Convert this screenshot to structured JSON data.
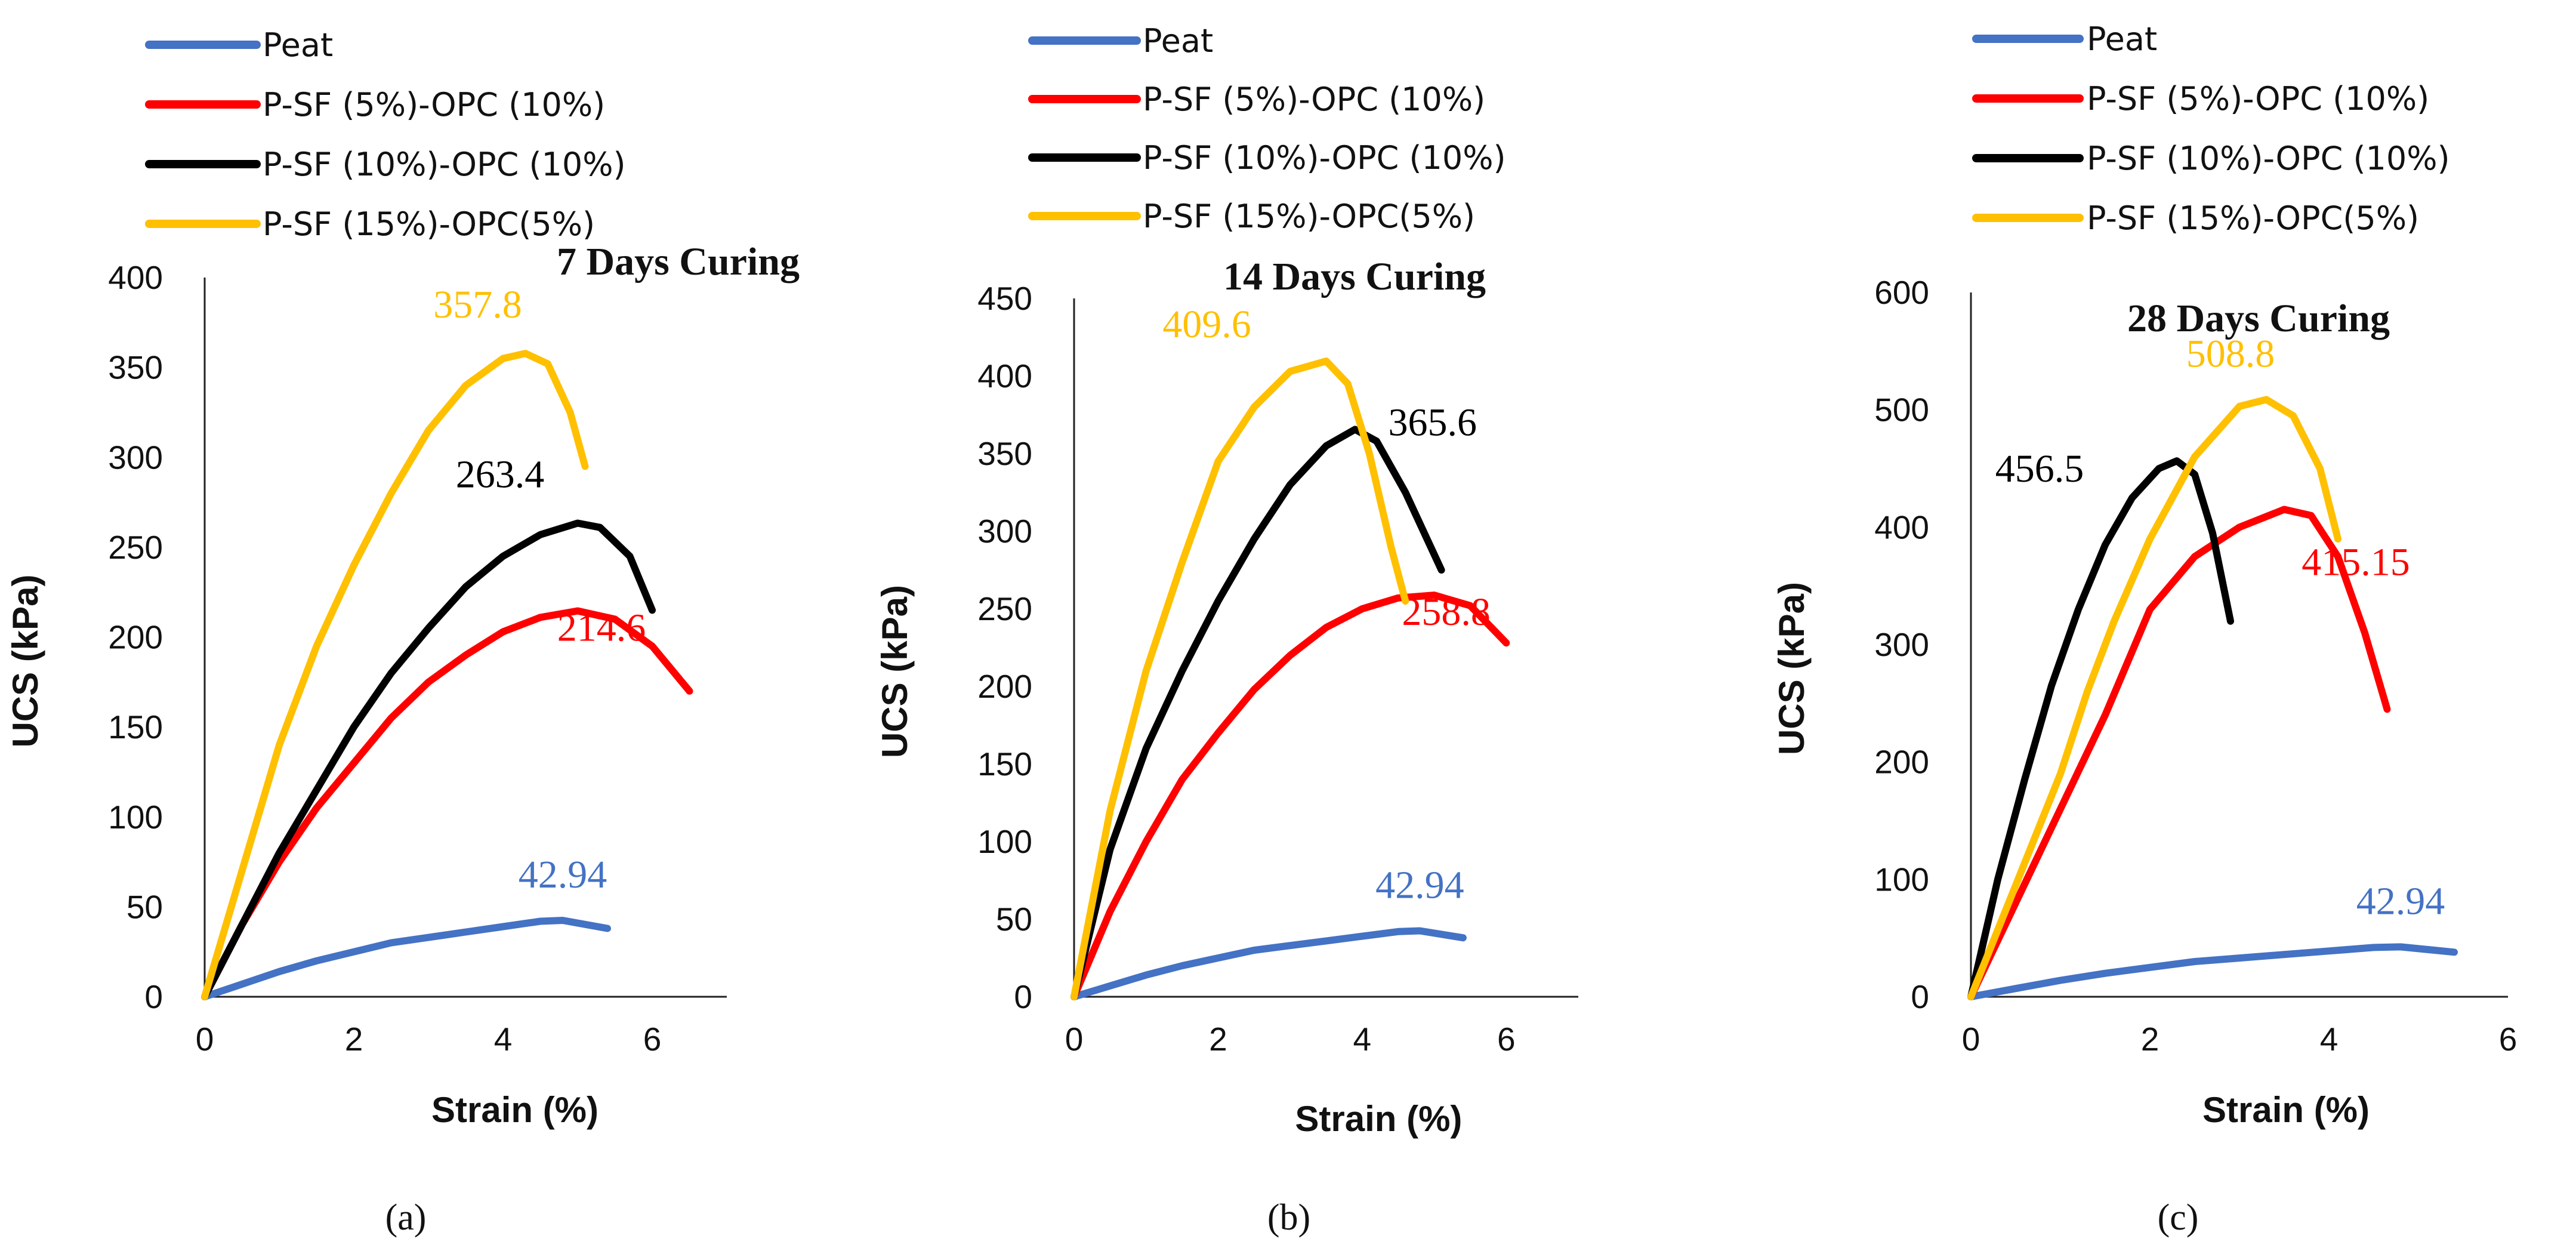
{
  "chart_data": [
    {
      "type": "line",
      "title": "7 Days Curing",
      "xlabel": "Strain (%)",
      "ylabel": "UCS (kPa)",
      "xlim": [
        0,
        7
      ],
      "ylim": [
        0,
        400
      ],
      "xticks": [
        "0",
        "2",
        "4",
        "6"
      ],
      "yticks": [
        "0",
        "50",
        "100",
        "150",
        "200",
        "250",
        "300",
        "350",
        "400"
      ],
      "grid": false,
      "legend_position": "top-left",
      "panel_label": "(a)",
      "series": [
        {
          "name": "Peat",
          "color": "#4472C4",
          "peak_label": "42.94",
          "x": [
            0,
            0.5,
            1,
            1.5,
            2,
            2.5,
            3,
            3.5,
            4,
            4.5,
            4.8,
            5.4
          ],
          "y": [
            0,
            7,
            14,
            20,
            25,
            30,
            33,
            36,
            39,
            42,
            42.5,
            38
          ]
        },
        {
          "name": "P-SF (5%)-OPC (10%)",
          "color": "#FF0000",
          "peak_label": "214.6",
          "x": [
            0,
            0.5,
            1,
            1.5,
            2,
            2.5,
            3,
            3.5,
            4,
            4.5,
            5,
            5.5,
            6,
            6.5
          ],
          "y": [
            0,
            40,
            75,
            105,
            130,
            155,
            175,
            190,
            203,
            211,
            214.6,
            210,
            195,
            170
          ]
        },
        {
          "name": "P-SF (10%)-OPC (10%)",
          "color": "#000000",
          "peak_label": "263.4",
          "x": [
            0,
            0.5,
            1,
            1.5,
            2,
            2.5,
            3,
            3.5,
            4,
            4.5,
            5,
            5.3,
            5.7,
            6
          ],
          "y": [
            0,
            40,
            80,
            115,
            150,
            180,
            205,
            228,
            245,
            257,
            263.4,
            261,
            245,
            215
          ]
        },
        {
          "name": "P-SF (15%)-OPC(5%)",
          "color": "#FFC000",
          "peak_label": "357.8",
          "x": [
            0,
            0.5,
            1,
            1.5,
            2,
            2.5,
            3,
            3.5,
            4,
            4.3,
            4.6,
            4.9,
            5.1
          ],
          "y": [
            0,
            70,
            140,
            195,
            240,
            280,
            315,
            340,
            355,
            357.8,
            352,
            325,
            295
          ]
        }
      ]
    },
    {
      "type": "line",
      "title": "14 Days Curing",
      "xlabel": "Strain (%)",
      "ylabel": "UCS (kPa)",
      "xlim": [
        0,
        7
      ],
      "ylim": [
        0,
        450
      ],
      "xticks": [
        "0",
        "2",
        "4",
        "6"
      ],
      "yticks": [
        "0",
        "50",
        "100",
        "150",
        "200",
        "250",
        "300",
        "350",
        "400",
        "450"
      ],
      "grid": false,
      "legend_position": "top-left",
      "panel_label": "(b)",
      "series": [
        {
          "name": "Peat",
          "color": "#4472C4",
          "peak_label": "42.94",
          "x": [
            0,
            0.5,
            1,
            1.5,
            2,
            2.5,
            3,
            3.5,
            4,
            4.5,
            4.8,
            5.4
          ],
          "y": [
            0,
            7,
            14,
            20,
            25,
            30,
            33,
            36,
            39,
            42,
            42.5,
            38
          ]
        },
        {
          "name": "P-SF (5%)-OPC (10%)",
          "color": "#FF0000",
          "peak_label": "258.8",
          "x": [
            0,
            0.5,
            1,
            1.5,
            2,
            2.5,
            3,
            3.5,
            4,
            4.5,
            5,
            5.5,
            6
          ],
          "y": [
            0,
            55,
            100,
            140,
            170,
            198,
            220,
            238,
            250,
            257,
            258.8,
            252,
            228
          ]
        },
        {
          "name": "P-SF (10%)-OPC (10%)",
          "color": "#000000",
          "peak_label": "365.6",
          "x": [
            0,
            0.5,
            1,
            1.5,
            2,
            2.5,
            3,
            3.5,
            3.9,
            4.2,
            4.6,
            5.1
          ],
          "y": [
            0,
            95,
            160,
            210,
            255,
            295,
            330,
            355,
            365.6,
            358,
            325,
            275
          ]
        },
        {
          "name": "P-SF (15%)-OPC(5%)",
          "color": "#FFC000",
          "peak_label": "409.6",
          "x": [
            0,
            0.5,
            1,
            1.5,
            2,
            2.5,
            3,
            3.5,
            3.8,
            4.1,
            4.4,
            4.6
          ],
          "y": [
            0,
            120,
            210,
            280,
            345,
            380,
            403,
            409.6,
            395,
            350,
            290,
            255
          ]
        }
      ]
    },
    {
      "type": "line",
      "title": "28 Days Curing",
      "xlabel": "Strain (%)",
      "ylabel": "UCS (kPa)",
      "xlim": [
        0,
        6
      ],
      "ylim": [
        0,
        600
      ],
      "xticks": [
        "0",
        "2",
        "4",
        "6"
      ],
      "yticks": [
        "0",
        "100",
        "200",
        "300",
        "400",
        "500",
        "600"
      ],
      "grid": false,
      "legend_position": "top-left",
      "panel_label": "(c)",
      "series": [
        {
          "name": "Peat",
          "color": "#4472C4",
          "peak_label": "42.94",
          "x": [
            0,
            0.5,
            1,
            1.5,
            2,
            2.5,
            3,
            3.5,
            4,
            4.5,
            4.8,
            5.4
          ],
          "y": [
            0,
            7,
            14,
            20,
            25,
            30,
            33,
            36,
            39,
            42,
            42.5,
            38
          ]
        },
        {
          "name": "P-SF (5%)-OPC (10%)",
          "color": "#FF0000",
          "peak_label": "415.15",
          "x": [
            0,
            0.5,
            1,
            1.5,
            2,
            2.5,
            3,
            3.5,
            3.8,
            4.1,
            4.4,
            4.65
          ],
          "y": [
            0,
            80,
            160,
            240,
            330,
            375,
            400,
            415.15,
            410,
            375,
            310,
            245
          ]
        },
        {
          "name": "P-SF (10%)-OPC (10%)",
          "color": "#000000",
          "peak_label": "456.5",
          "x": [
            0,
            0.3,
            0.6,
            0.9,
            1.2,
            1.5,
            1.8,
            2.1,
            2.3,
            2.5,
            2.7,
            2.9
          ],
          "y": [
            0,
            100,
            185,
            265,
            330,
            385,
            425,
            450,
            456.5,
            445,
            395,
            320
          ]
        },
        {
          "name": "P-SF (15%)-OPC(5%)",
          "color": "#FFC000",
          "peak_label": "508.8",
          "x": [
            0,
            0.5,
            1,
            1.3,
            1.6,
            2,
            2.5,
            3,
            3.3,
            3.6,
            3.9,
            4.1
          ],
          "y": [
            0,
            95,
            190,
            260,
            320,
            390,
            460,
            503,
            508.8,
            495,
            450,
            390
          ]
        }
      ]
    }
  ]
}
